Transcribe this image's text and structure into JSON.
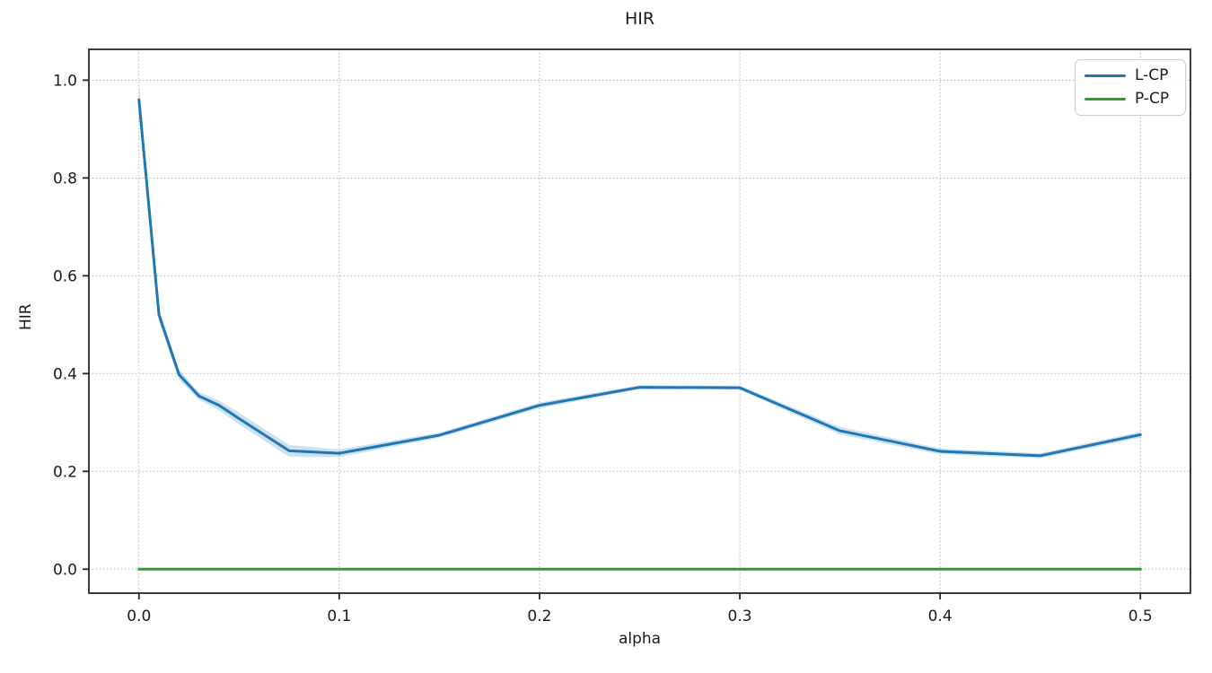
{
  "chart_data": {
    "type": "line",
    "title": "HIR",
    "xlabel": "alpha",
    "ylabel": "HIR",
    "xlim": [
      -0.025,
      0.525
    ],
    "ylim": [
      -0.049,
      1.063
    ],
    "x_ticks": [
      0.0,
      0.1,
      0.2,
      0.3,
      0.4,
      0.5
    ],
    "x_tick_labels": [
      "0.0",
      "0.1",
      "0.2",
      "0.3",
      "0.4",
      "0.5"
    ],
    "y_ticks": [
      0.0,
      0.2,
      0.4,
      0.6,
      0.8,
      1.0
    ],
    "y_tick_labels": [
      "0.0",
      "0.2",
      "0.4",
      "0.6",
      "0.8",
      "1.0"
    ],
    "grid": "dotted",
    "grid_color": "#b8b8b8",
    "spine_color": "#262626",
    "legend_position": "upper right",
    "x": [
      0.0,
      0.01,
      0.02,
      0.03,
      0.04,
      0.05,
      0.075,
      0.1,
      0.15,
      0.2,
      0.25,
      0.3,
      0.35,
      0.4,
      0.45,
      0.5
    ],
    "series": [
      {
        "name": "L-CP",
        "color": "#1f77b4",
        "values": [
          0.96,
          0.52,
          0.398,
          0.354,
          0.335,
          0.308,
          0.242,
          0.237,
          0.274,
          0.335,
          0.372,
          0.371,
          0.283,
          0.241,
          0.232,
          0.275
        ],
        "band_halfwidth": [
          0.03,
          0.013,
          0.01,
          0.008,
          0.01,
          0.012,
          0.012,
          0.008,
          0.005,
          0.006,
          0.004,
          0.004,
          0.008,
          0.006,
          0.005,
          0.006
        ],
        "band_color": "rgba(31,119,180,0.22)"
      },
      {
        "name": "P-CP",
        "color": "#2ca02c",
        "values": [
          0.0,
          0.0,
          0.0,
          0.0,
          0.0,
          0.0,
          0.0,
          0.0,
          0.0,
          0.0,
          0.0,
          0.0,
          0.0,
          0.0,
          0.0,
          0.0
        ],
        "band_halfwidth": null,
        "band_color": null
      }
    ]
  }
}
